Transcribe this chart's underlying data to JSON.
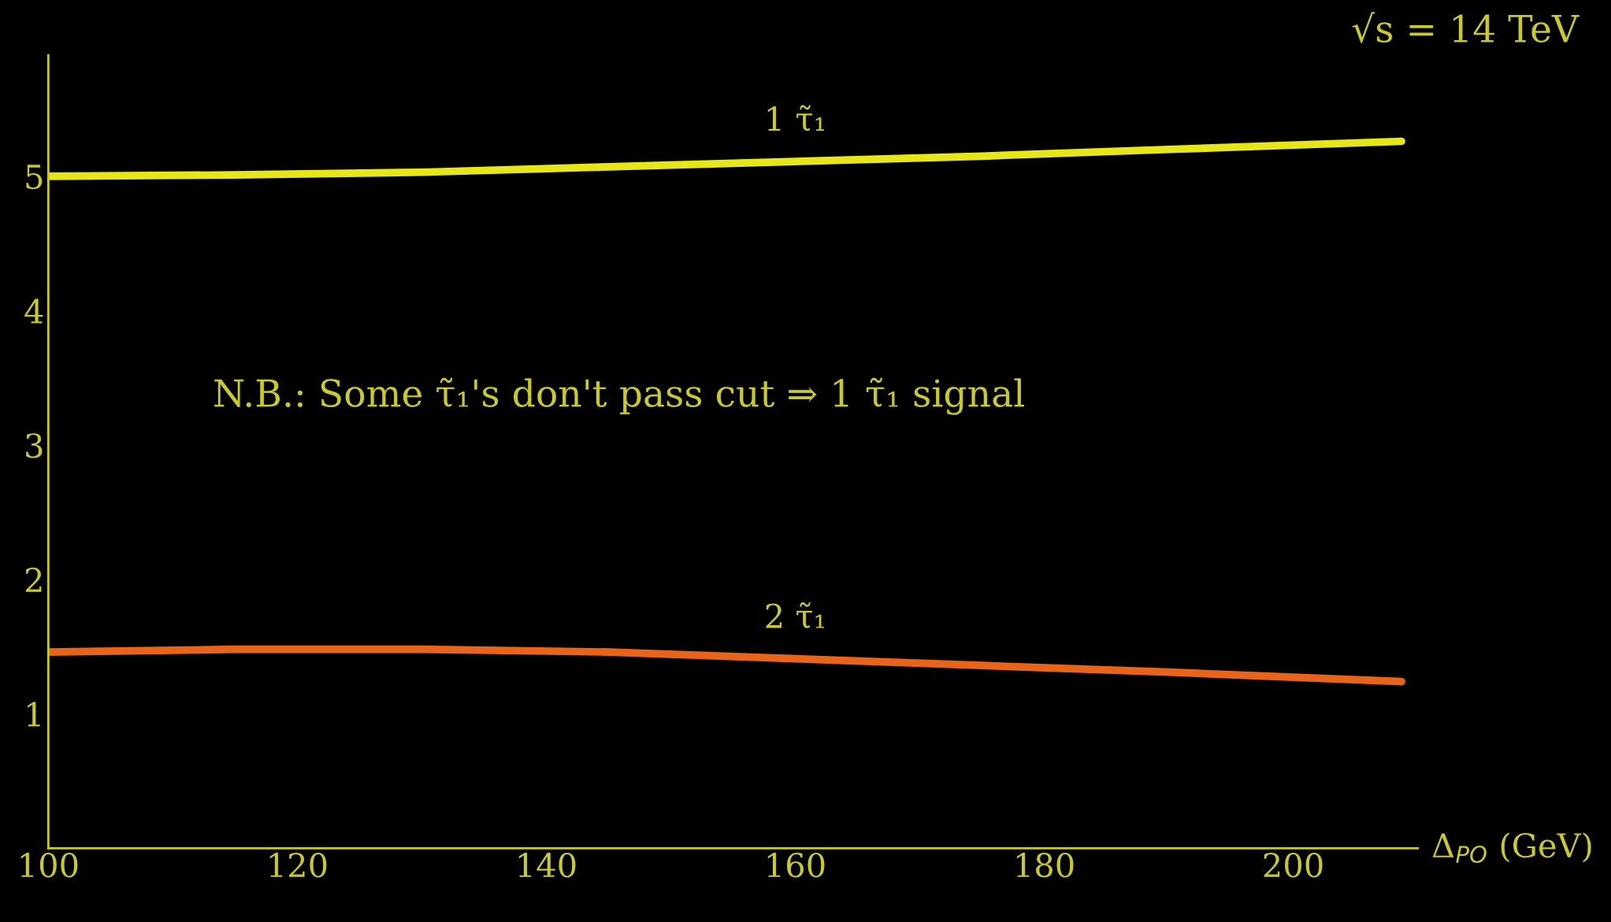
{
  "chart_data": {
    "type": "line",
    "xlabel": "Δ$_{PO}$ (GeV)",
    "xlim": [
      100,
      210
    ],
    "xticks": [
      100,
      120,
      140,
      160,
      180,
      200
    ],
    "ylim": [
      0,
      5.9
    ],
    "yticks": [
      1,
      2,
      3,
      4,
      5
    ],
    "grid": false,
    "legend": false,
    "marker": "none",
    "line_style": "solid",
    "series": [
      {
        "name": "1 τ̃₁",
        "color": "#e6e619",
        "x": [
          100,
          115,
          130,
          145,
          160,
          175,
          190,
          208.7
        ],
        "values": [
          5.0,
          5.01,
          5.03,
          5.07,
          5.11,
          5.15,
          5.2,
          5.26
        ]
      },
      {
        "name": "2 τ̃₁",
        "color": "#e8641a",
        "x": [
          100,
          115,
          130,
          145,
          160,
          175,
          190,
          208.7
        ],
        "values": [
          1.46,
          1.48,
          1.48,
          1.46,
          1.41,
          1.36,
          1.31,
          1.24
        ]
      }
    ],
    "annotations": [
      "N.B.: Some τ̃₁'s don't pass cut ⇒ 1 τ̃₁ signal",
      "√s = 14 TeV"
    ]
  }
}
